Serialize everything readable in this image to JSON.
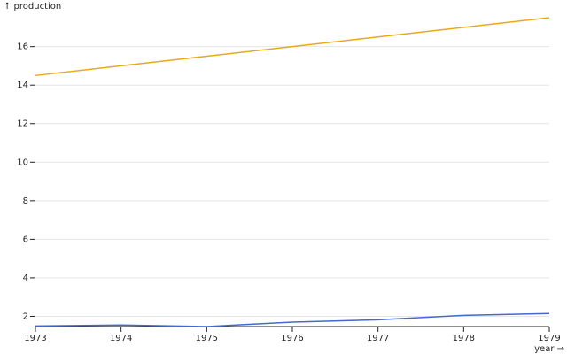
{
  "chart_data": {
    "type": "line",
    "y_label": "↑ production",
    "x_label": "year →",
    "x": [
      1973,
      1974,
      1975,
      1976,
      1977,
      1978,
      1979
    ],
    "series": [
      {
        "color": "#e8a91b",
        "values": [
          14.5,
          15,
          15.5,
          16,
          16.5,
          17,
          17.5
        ]
      },
      {
        "color": "#4269d0",
        "values": [
          1.5,
          1.55,
          1.47,
          1.7,
          1.82,
          2.05,
          2.15
        ]
      }
    ],
    "xlim": [
      1973,
      1979
    ],
    "xticks": [
      1973,
      1974,
      1975,
      1976,
      1977,
      1978,
      1979
    ],
    "ylim": [
      1.47,
      17.5
    ],
    "yticks": [
      2,
      4,
      6,
      8,
      10,
      12,
      14,
      16
    ],
    "grid": true
  }
}
